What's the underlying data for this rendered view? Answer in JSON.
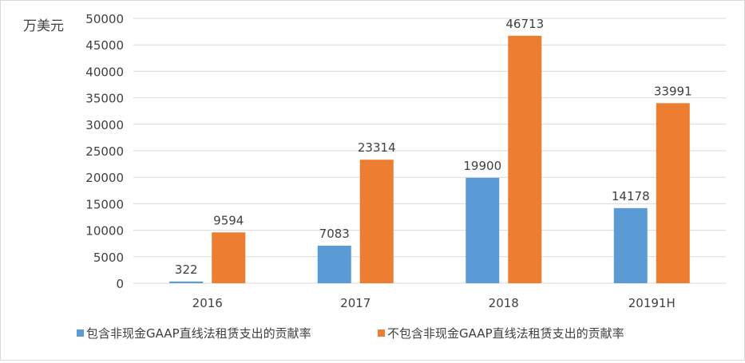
{
  "chart_data": {
    "type": "bar",
    "title": "",
    "ylabel": "万美元",
    "xlabel": "",
    "categories": [
      "2016",
      "2017",
      "2018",
      "20191H"
    ],
    "series": [
      {
        "name": "包含非现金GAAP直线法租赁支出的贡献率",
        "values": [
          322,
          7083,
          19900,
          14178
        ],
        "color": "#5b9bd5"
      },
      {
        "name": "不包含非现金GAAP直线法租赁支出的贡献率",
        "values": [
          9594,
          23314,
          46713,
          33991
        ],
        "color": "#ed7d31"
      }
    ],
    "ylim": [
      0,
      50000
    ],
    "ytick_step": 5000,
    "yticks": [
      "0",
      "5000",
      "10000",
      "15000",
      "20000",
      "25000",
      "30000",
      "35000",
      "40000",
      "45000",
      "50000"
    ],
    "data_labels": true,
    "grid": true,
    "legend_position": "bottom",
    "colors": {
      "grid": "#d9d9d9",
      "text": "#404040",
      "border": "#d9d9d9"
    }
  }
}
